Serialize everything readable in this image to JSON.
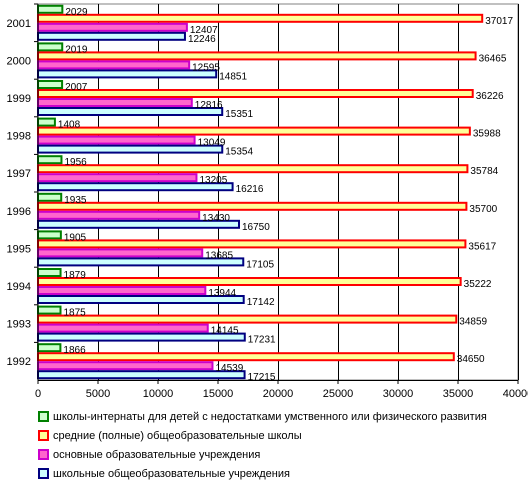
{
  "chart_data": {
    "type": "bar",
    "orientation": "horizontal",
    "categories": [
      "1992",
      "1993",
      "1994",
      "1995",
      "1996",
      "1997",
      "1998",
      "1999",
      "2000",
      "2001"
    ],
    "series": [
      {
        "name": "школы-интернаты для детей с недостатками умственного или физического развития",
        "fill": "#ccffcc",
        "border": "#008000",
        "values": [
          1866,
          1875,
          1879,
          1905,
          1935,
          1956,
          1408,
          2007,
          2019,
          2029
        ]
      },
      {
        "name": "средние (полные) общеобразовательные школы",
        "fill": "#ffff99",
        "border": "#ff0000",
        "values": [
          34650,
          34859,
          35222,
          35617,
          35700,
          35784,
          35988,
          36226,
          36465,
          37017
        ]
      },
      {
        "name": "основные образовательные учреждения",
        "fill": "#ff66cc",
        "border": "#cc00cc",
        "values": [
          14539,
          14145,
          13944,
          13685,
          13430,
          13205,
          13049,
          12816,
          12595,
          12407
        ]
      },
      {
        "name": "школьные общеобразовательные учреждения",
        "fill": "#ccffff",
        "border": "#000080",
        "values": [
          17215,
          17231,
          17142,
          17105,
          16750,
          16216,
          15354,
          15351,
          14851,
          12246
        ]
      }
    ],
    "xlim": [
      0,
      40000
    ],
    "xticks": [
      0,
      5000,
      10000,
      15000,
      20000,
      25000,
      30000,
      35000,
      40000
    ],
    "xtick_labels": [
      "0",
      "5000",
      "10000",
      "15000",
      "20000",
      "25000",
      "30000",
      "35000",
      "40000"
    ],
    "grid": true,
    "legend_position": "bottom",
    "title": "",
    "xlabel": "",
    "ylabel": ""
  }
}
